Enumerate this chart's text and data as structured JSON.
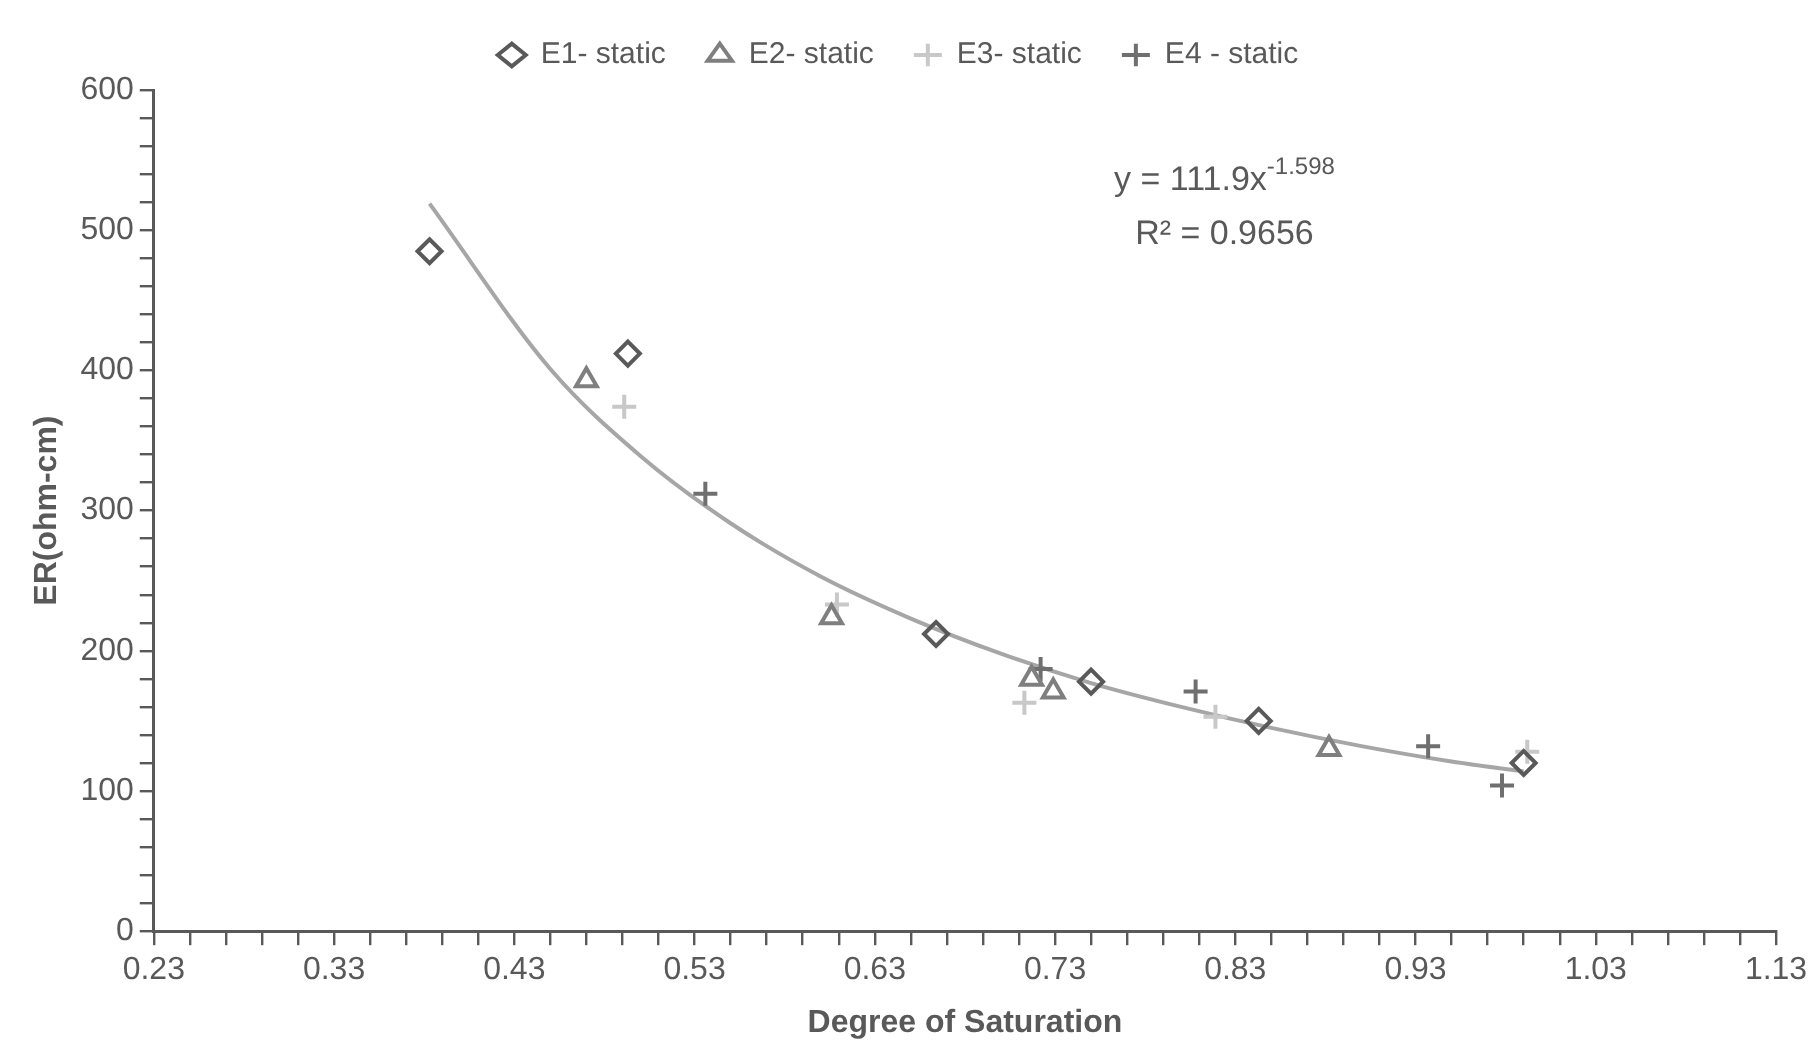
{
  "chart_data": {
    "type": "scatter",
    "xlabel": "Degree of Saturation",
    "ylabel": "ER(ohm-cm)",
    "xlim": [
      0.23,
      1.13
    ],
    "ylim": [
      0,
      600
    ],
    "xticks": [
      0.23,
      {
        "value": 0.25,
        "label": null
      },
      {
        "value": 0.27,
        "label": null
      },
      {
        "value": 0.29,
        "label": null
      },
      {
        "value": 0.31,
        "label": null
      },
      0.33,
      {
        "value": 0.35,
        "label": null
      },
      {
        "value": 0.37,
        "label": null
      },
      {
        "value": 0.39,
        "label": null
      },
      {
        "value": 0.41,
        "label": null
      },
      0.43,
      {
        "value": 0.45,
        "label": null
      },
      {
        "value": 0.47,
        "label": null
      },
      {
        "value": 0.49,
        "label": null
      },
      {
        "value": 0.51,
        "label": null
      },
      0.53,
      {
        "value": 0.55,
        "label": null
      },
      {
        "value": 0.57,
        "label": null
      },
      {
        "value": 0.59,
        "label": null
      },
      {
        "value": 0.61,
        "label": null
      },
      0.63,
      {
        "value": 0.65,
        "label": null
      },
      {
        "value": 0.67,
        "label": null
      },
      {
        "value": 0.69,
        "label": null
      },
      {
        "value": 0.71,
        "label": null
      },
      0.73,
      {
        "value": 0.75,
        "label": null
      },
      {
        "value": 0.77,
        "label": null
      },
      {
        "value": 0.79,
        "label": null
      },
      {
        "value": 0.81,
        "label": null
      },
      0.83,
      {
        "value": 0.85,
        "label": null
      },
      {
        "value": 0.87,
        "label": null
      },
      {
        "value": 0.89,
        "label": null
      },
      {
        "value": 0.91,
        "label": null
      },
      0.93,
      {
        "value": 0.95,
        "label": null
      },
      {
        "value": 0.97,
        "label": null
      },
      {
        "value": 0.99,
        "label": null
      },
      {
        "value": 1.01,
        "label": null
      },
      1.03,
      {
        "value": 1.05,
        "label": null
      },
      {
        "value": 1.07,
        "label": null
      },
      {
        "value": 1.09,
        "label": null
      },
      {
        "value": 1.11,
        "label": null
      },
      1.13
    ],
    "yticks": [
      0,
      {
        "value": 20,
        "label": null
      },
      {
        "value": 40,
        "label": null
      },
      {
        "value": 60,
        "label": null
      },
      {
        "value": 80,
        "label": null
      },
      100,
      {
        "value": 120,
        "label": null
      },
      {
        "value": 140,
        "label": null
      },
      {
        "value": 160,
        "label": null
      },
      {
        "value": 180,
        "label": null
      },
      200,
      {
        "value": 220,
        "label": null
      },
      {
        "value": 240,
        "label": null
      },
      {
        "value": 260,
        "label": null
      },
      {
        "value": 280,
        "label": null
      },
      300,
      {
        "value": 320,
        "label": null
      },
      {
        "value": 340,
        "label": null
      },
      {
        "value": 360,
        "label": null
      },
      {
        "value": 380,
        "label": null
      },
      400,
      {
        "value": 420,
        "label": null
      },
      {
        "value": 440,
        "label": null
      },
      {
        "value": 460,
        "label": null
      },
      {
        "value": 480,
        "label": null
      },
      500,
      {
        "value": 520,
        "label": null
      },
      {
        "value": 540,
        "label": null
      },
      {
        "value": 560,
        "label": null
      },
      {
        "value": 580,
        "label": null
      },
      600
    ],
    "grid": false,
    "legend": "top",
    "annotations": [
      "y = 111.9x$^{-1.598}$",
      "R² = 0.9656"
    ],
    "series": [
      {
        "name": "E1- static",
        "color": "#595959",
        "marker": "diamond",
        "x": [
          0.383,
          0.493,
          0.664,
          0.75,
          0.843,
          0.99
        ],
        "values": [
          485,
          412,
          212,
          178,
          150,
          120
        ]
      },
      {
        "name": "E2- static",
        "color": "#7f7f7f",
        "marker": "triangle",
        "x": [
          0.47,
          0.606,
          0.717,
          0.729,
          0.882
        ],
        "values": [
          393,
          224,
          180,
          171,
          130
        ]
      },
      {
        "name": "E3- static",
        "color": "#c8c8c8",
        "marker": "cross",
        "x": [
          0.491,
          0.609,
          0.713,
          0.819,
          0.992
        ],
        "values": [
          374,
          233,
          163,
          153,
          128
        ]
      },
      {
        "name": "E4 - static",
        "color": "#6f6f6f",
        "marker": "cross",
        "x": [
          0.536,
          0.722,
          0.808,
          0.937,
          0.978
        ],
        "values": [
          312,
          187,
          171,
          132,
          104
        ]
      },
      {
        "type": "line",
        "color": "#a6a6a6",
        "marker": "none",
        "x": [
          0.383,
          0.45,
          0.5,
          0.55,
          0.6,
          0.65,
          0.7,
          0.75,
          0.8,
          0.85,
          0.9,
          0.95,
          0.99
        ],
        "values": [
          519,
          401,
          339,
          291,
          253,
          223,
          198,
          177,
          160,
          145,
          132,
          121,
          114
        ]
      }
    ]
  }
}
